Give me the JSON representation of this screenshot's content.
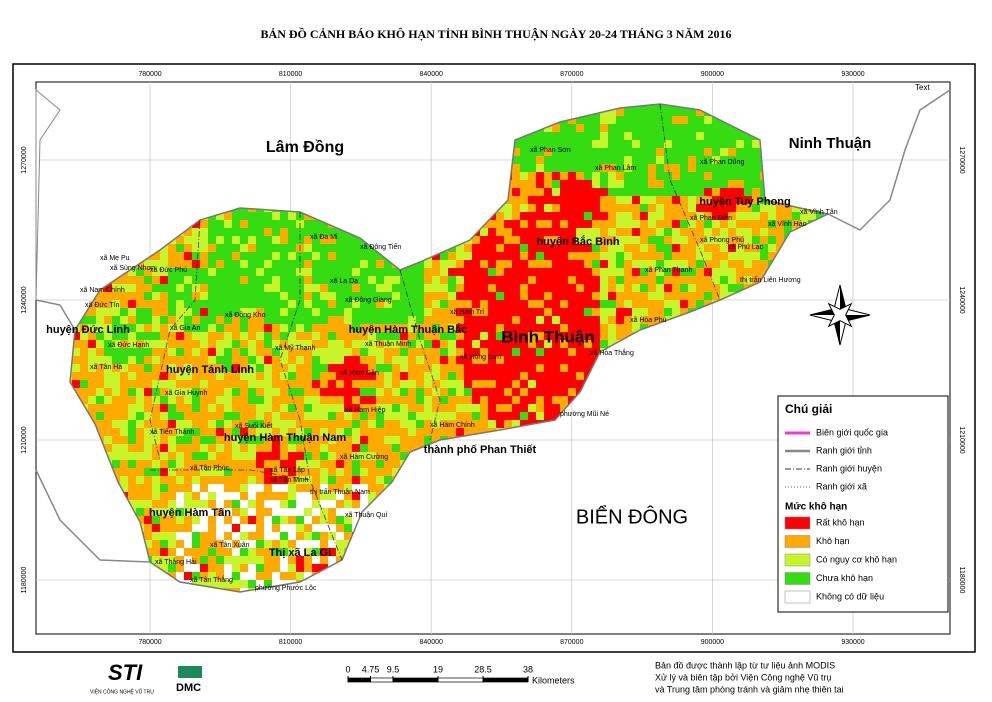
{
  "title": "BẢN ĐỒ CẢNH BÁO KHÔ HẠN TỈNH BÌNH THUẬN NGÀY 20-24 THÁNG 3 NĂM 2016",
  "corner_text": "Text",
  "xticks": [
    780000,
    810000,
    840000,
    870000,
    900000,
    930000
  ],
  "yticks": [
    1270000,
    1240000,
    1210000,
    1180000
  ],
  "regions": [
    "Lâm Đồng",
    "Ninh Thuận",
    "BIỂN ĐÔNG",
    "Bình Thuận",
    "huyện Bắc Bình",
    "huyện Tuy Phong",
    "huyện Hàm Thuận Bắc",
    "huyện Đức Linh",
    "huyện Tánh Linh",
    "huyện Hàm Thuận Nam",
    "thành phố Phan Thiết",
    "huyện Hàm Tân",
    "Thị xã La Gi"
  ],
  "communes": [
    "xã Phan Sơn",
    "xã Phan Lâm",
    "xã Phan Dũng",
    "xã Phan Điền",
    "xã Vĩnh Hảo",
    "xã Vĩnh Tân",
    "xã Phong Phú",
    "xã Phú Lạc",
    "thị trấn Liên Hương",
    "xã Phan Thanh",
    "xã Hòa Phú",
    "xã Đa Mi",
    "xã Đông Tiến",
    "xã La Dạ",
    "xã Đông Giang",
    "xã Mẹ Pu",
    "xã Sùng Nhơn",
    "xã Đức Phú",
    "xã Nam Chính",
    "xã Đức Tín",
    "xã Gia An",
    "xã Đức Hạnh",
    "xã Tân Hà",
    "xã Đồng Kho",
    "xã Mỹ Thạnh",
    "xã Hàm Trí",
    "xã Thuận Minh",
    "xã Hàm Cần",
    "xã Hàm Hiệp",
    "xã Hàm Chính",
    "phường Mũi Né",
    "xã Tiến Thành",
    "xã Hàm Cường",
    "xã Tân Phúc",
    "xã Tân Lập",
    "thị trấn Thuận Nam",
    "xã Tân Minh",
    "xã Thuận Quí",
    "xã Tân Thắng",
    "xã Thắng Hải",
    "xã Tân Xuân",
    "phường Phước Lộc",
    "xã Suối Kiết",
    "xã Gia Huynh",
    "xã Hồng Sơn",
    "xã Hòa Thắng"
  ],
  "legend": {
    "title": "Chú giải",
    "boundaries": [
      "Biên giới quốc gia",
      "Ranh giới tỉnh",
      "Ranh giới huyện",
      "Ranh giới xã"
    ],
    "level_title": "Mức khô hạn",
    "levels": [
      {
        "label": "Rất khô hạn",
        "color": "#ff0000"
      },
      {
        "label": "Khô hạn",
        "color": "#ffaa00"
      },
      {
        "label": "Có nguy cơ khô hạn",
        "color": "#c8f52a"
      },
      {
        "label": "Chưa khô hạn",
        "color": "#33dd11"
      },
      {
        "label": "Không có dữ liệu",
        "color": "#ffffff"
      }
    ]
  },
  "scale": {
    "ticks": [
      0,
      4.75,
      9.5,
      19,
      28.5,
      38
    ],
    "unit": "Kilometers"
  },
  "logos": [
    "STI",
    "VIỆN CÔNG NGHỆ VŨ TRỤ",
    "DMC"
  ],
  "credits": [
    "Bản đồ được thành lập từ tư liệu ảnh MODIS",
    "Xử lý và biên tập bởi Viện Công nghệ Vũ trụ",
    "và Trung tâm phòng tránh và giảm nhẹ thiên tai"
  ]
}
